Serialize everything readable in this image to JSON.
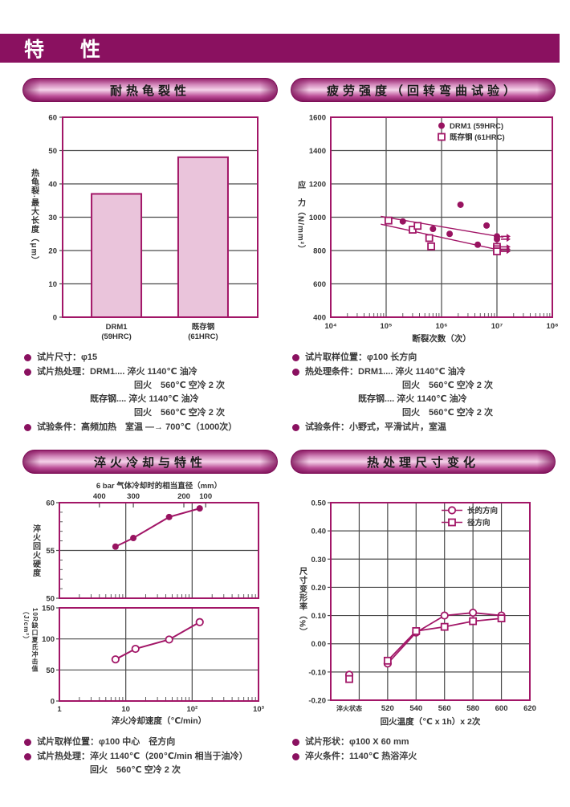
{
  "page": {
    "header_title": "特　性"
  },
  "colors": {
    "band": "#8A1160",
    "magenta": "#A21667",
    "marker_fill": "#981360",
    "bar_fill": "#EAC4DB",
    "grid": "#4A4A4A",
    "text": "#333333"
  },
  "panels": {
    "heat_crack": {
      "title": "耐热龟裂性",
      "bullets": [
        {
          "lines": [
            "试片尺寸：φ15"
          ]
        },
        {
          "lines": [
            "试片热处理：DRM1.... 淬火 1140℃ 油冷",
            "　　　　　　　　　　　回火　560℃ 空冷 2 次",
            "　　　　　　既存钢.... 淬火 1140℃ 油冷",
            "　　　　　　　　　　　回火　560℃ 空冷 2 次"
          ]
        },
        {
          "lines": [
            "试验条件：高频加热　室温 —→ 700℃（1000次）"
          ]
        }
      ]
    },
    "fatigue": {
      "title": "疲劳强度（回转弯曲试验）",
      "bullets": [
        {
          "lines": [
            "试片取样位置：φ100 长方向"
          ]
        },
        {
          "lines": [
            "热处理条件：DRM1.... 淬火 1140℃ 油冷",
            "　　　　　　　　　　　回火　560℃ 空冷 2 次",
            "　　　　　　既存钢.... 淬火 1140℃ 油冷",
            "　　　　　　　　　　　回火　560℃ 空冷 2 次"
          ]
        },
        {
          "lines": [
            "试验条件：小野式，平滑试片，室温"
          ]
        }
      ]
    },
    "quench": {
      "title": "淬火冷却与特性",
      "bullets": [
        {
          "lines": [
            "试片取样位置：φ100 中心　径方向"
          ]
        },
        {
          "lines": [
            "试片热处理：淬火 1140℃（200℃/min 相当于油冷）",
            "　　　　　　回火　560℃ 空冷 2 次"
          ]
        }
      ]
    },
    "dimension": {
      "title": "热处理尺寸变化",
      "bullets": [
        {
          "lines": [
            "试片形状：φ100 X 60 mm"
          ]
        },
        {
          "lines": [
            "淬火条件：1140℃ 热浴淬火"
          ]
        }
      ]
    }
  },
  "chart_data": [
    {
      "id": "thermal-crack-bar",
      "type": "bar",
      "title": "耐热龟裂性",
      "categories": [
        "DRM1\n(59HRC)",
        "既存钢\n(61HRC)"
      ],
      "values": [
        37,
        48
      ],
      "xlabel": "",
      "ylabel": "热龟裂·最大长度（μm）",
      "ylim": [
        0,
        60
      ],
      "ytick_step": 10,
      "grid": true
    },
    {
      "id": "fatigue-sn",
      "type": "scatter-log",
      "title": "疲劳强度（回转弯曲试验）",
      "xlabel": "断裂次数（次）",
      "ylabel": "应　力（N/mm²）",
      "xscale": "log",
      "xlim": [
        10000,
        100000000
      ],
      "xtick_labels": [
        "10⁴",
        "10⁵",
        "10⁶",
        "10⁷",
        "10⁸"
      ],
      "ylim": [
        400,
        1600
      ],
      "ytick_step": 200,
      "grid": true,
      "legend_position": "top-right",
      "legend": [
        {
          "marker": "circle-filled",
          "label": "DRM1 (59HRC)"
        },
        {
          "marker": "square-open",
          "label": "既存钢 (61HRC)"
        }
      ],
      "series": [
        {
          "name": "DRM1 (59HRC)",
          "marker": "circle-filled",
          "points": [
            [
              200000,
              975
            ],
            [
              700000,
              930
            ],
            [
              1400000,
              900
            ],
            [
              2200000,
              1075
            ],
            [
              4500000,
              835
            ],
            [
              6500000,
              950
            ]
          ],
          "runout_points": [
            [
              10000000,
              885
            ],
            [
              10000000,
              868
            ]
          ]
        },
        {
          "name": "既存钢 (61HRC)",
          "marker": "square-open",
          "points": [
            [
              110000,
              980
            ],
            [
              300000,
              925
            ],
            [
              370000,
              948
            ],
            [
              600000,
              875
            ],
            [
              650000,
              825
            ]
          ],
          "runout_points": [
            [
              10000000,
              822
            ],
            [
              10000000,
              808
            ],
            [
              10000000,
              795
            ]
          ]
        }
      ],
      "trend_lines": [
        {
          "x1": 80000,
          "y1": 1005,
          "x2": 13000000,
          "y2": 880
        },
        {
          "x1": 80000,
          "y1": 958,
          "x2": 13000000,
          "y2": 798
        }
      ]
    },
    {
      "id": "quench-hardness",
      "type": "line-log",
      "title": "淬火冷却与特性（硬度）",
      "ylabel": "淬火回火硬度",
      "xlim": [
        1,
        1000
      ],
      "ylim": [
        50,
        60
      ],
      "yticks": [
        50,
        55,
        60
      ],
      "y_minor_step": 1,
      "grid": true,
      "top_axis": {
        "label": "6 bar 气体冷却时的相当直径（mm）",
        "ticks": [
          {
            "label": "400",
            "x": 4
          },
          {
            "label": "300",
            "x": 13
          },
          {
            "label": "200",
            "x": 75
          },
          {
            "label": "100",
            "x": 160
          }
        ]
      },
      "marker": "circle-filled",
      "points": [
        [
          7,
          55.4
        ],
        [
          13,
          56.3
        ],
        [
          45,
          58.5
        ],
        [
          130,
          59.4
        ]
      ]
    },
    {
      "id": "quench-impact",
      "type": "line-log",
      "title": "淬火冷却与特性（冲击值）",
      "xlabel": "淬火冷却速度（℃/min）",
      "ylabel": "10R缺口夏氏冲击值（J/cm²）",
      "xlim": [
        1,
        1000
      ],
      "ylim": [
        0,
        150
      ],
      "yticks": [
        0,
        50,
        100,
        150
      ],
      "xtick_labels": [
        "1",
        "10",
        "10²",
        "10³"
      ],
      "grid": true,
      "marker": "circle-open",
      "points": [
        [
          7,
          67
        ],
        [
          14,
          84
        ],
        [
          45,
          99
        ],
        [
          130,
          127
        ]
      ]
    },
    {
      "id": "dimension-change",
      "type": "line-cat",
      "title": "热处理尺寸变化",
      "xlabel": "回火温度（℃ x 1h）x 2次",
      "ylabel": "尺寸变形率（%）",
      "xlim": [
        480,
        620
      ],
      "grid_x": [
        500,
        520,
        540,
        560,
        580,
        600
      ],
      "xticks": [
        {
          "label": "淬火状态",
          "x": 493
        },
        {
          "label": "520",
          "x": 520
        },
        {
          "label": "540",
          "x": 540
        },
        {
          "label": "560",
          "x": 560
        },
        {
          "label": "580",
          "x": 580
        },
        {
          "label": "600",
          "x": 600
        },
        {
          "label": "620",
          "x": 620
        }
      ],
      "ylim": [
        -0.2,
        0.5
      ],
      "ytick_step": 0.1,
      "grid": true,
      "legend_position": "top-right",
      "legend": [
        {
          "marker": "circle-open",
          "label": "长的方向"
        },
        {
          "marker": "square-open",
          "label": "径方向"
        }
      ],
      "series": [
        {
          "name": "长的方向",
          "marker": "circle-open",
          "points": [
            [
              520,
              -0.07
            ],
            [
              540,
              0.04
            ],
            [
              560,
              0.1
            ],
            [
              580,
              0.11
            ],
            [
              600,
              0.1
            ]
          ],
          "isolated_points": [
            [
              493,
              -0.11
            ]
          ]
        },
        {
          "name": "径方向",
          "marker": "square-open",
          "points": [
            [
              520,
              -0.06
            ],
            [
              540,
              0.045
            ],
            [
              560,
              0.06
            ],
            [
              580,
              0.08
            ],
            [
              600,
              0.09
            ]
          ],
          "isolated_points": [
            [
              493,
              -0.125
            ]
          ]
        }
      ]
    }
  ]
}
